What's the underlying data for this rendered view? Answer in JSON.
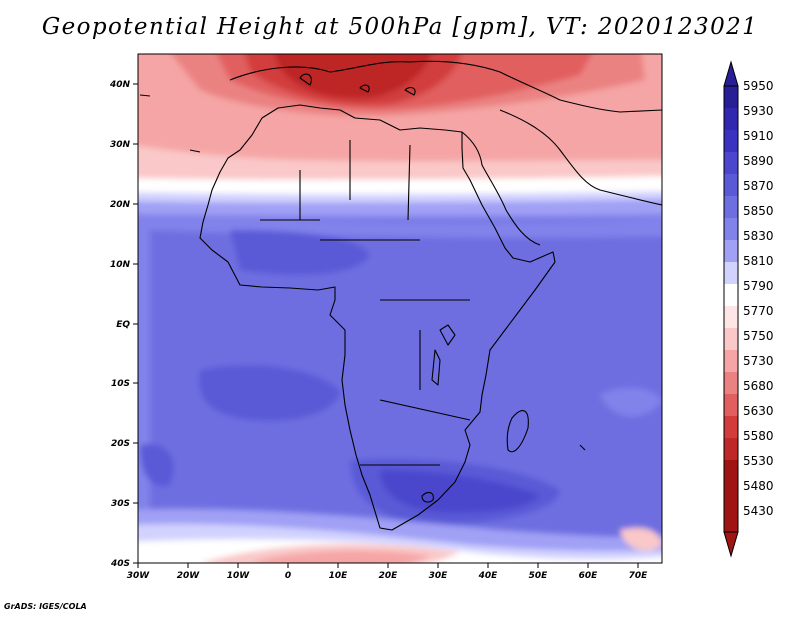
{
  "title": "Geopotential Height at 500hPa [gpm], VT: 2020123021",
  "credit": "GrADS: IGES/COLA",
  "chart_data": {
    "type": "heatmap",
    "variable": "Geopotential Height at 500hPa",
    "units": "gpm",
    "valid_time": "2020123021",
    "lon_range": [
      -30,
      75
    ],
    "lat_range": [
      -40,
      45
    ],
    "x_ticks": [
      "30W",
      "20W",
      "10W",
      "0",
      "10E",
      "20E",
      "30E",
      "40E",
      "50E",
      "60E",
      "70E"
    ],
    "y_ticks": [
      "40N",
      "30N",
      "20N",
      "10N",
      "EQ",
      "10S",
      "20S",
      "30S",
      "40S"
    ],
    "colorbar": {
      "levels": [
        "5950",
        "5930",
        "5910",
        "5890",
        "5870",
        "5850",
        "5830",
        "5810",
        "5790",
        "5770",
        "5750",
        "5730",
        "5680",
        "5630",
        "5580",
        "5530",
        "5480",
        "5430"
      ],
      "colors": [
        "#281e96",
        "#3228af",
        "#3a32c0",
        "#4b46cd",
        "#5a5ad7",
        "#6e6ee1",
        "#8282eb",
        "#a0a0f5",
        "#d2d2ff",
        "#ffffff",
        "#ffe6e6",
        "#fac8c8",
        "#f5a5a5",
        "#eb8282",
        "#e15f5f",
        "#d23c3c",
        "#be2828",
        "#a01414"
      ]
    }
  }
}
